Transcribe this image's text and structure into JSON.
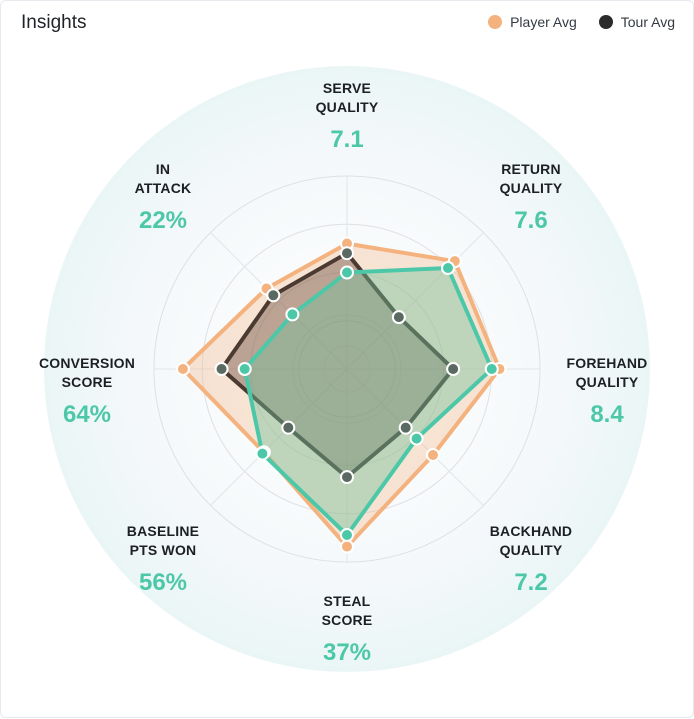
{
  "header": {
    "title": "Insights"
  },
  "colors": {
    "player": "#f4b27e",
    "tour": "#2b2b2b",
    "current": "#4cc8a8",
    "bg_circle": "#eaf6f5"
  },
  "chart_data": {
    "type": "radar",
    "legend_position": "top-right",
    "axes": [
      {
        "name": [
          "SERVE",
          "QUALITY"
        ],
        "value_label": "7.1"
      },
      {
        "name": [
          "RETURN",
          "QUALITY"
        ],
        "value_label": "7.6"
      },
      {
        "name": [
          "FOREHAND",
          "QUALITY"
        ],
        "value_label": "8.4"
      },
      {
        "name": [
          "BACKHAND",
          "QUALITY"
        ],
        "value_label": "7.2"
      },
      {
        "name": [
          "STEAL",
          "SCORE"
        ],
        "value_label": "37%"
      },
      {
        "name": [
          "BASELINE",
          "PTS WON"
        ],
        "value_label": "56%"
      },
      {
        "name": [
          "CONVERSION",
          "SCORE"
        ],
        "value_label": "64%"
      },
      {
        "name": [
          "IN",
          "ATTACK"
        ],
        "value_label": "22%"
      }
    ],
    "rmax": 1.0,
    "rings": [
      0.25,
      0.5,
      0.75,
      1.0
    ],
    "series": [
      {
        "name": "Player Avg",
        "color_key": "player",
        "values": [
          0.65,
          0.79,
          0.79,
          0.63,
          0.92,
          0.61,
          0.85,
          0.59
        ]
      },
      {
        "name": "Tour Avg",
        "color_key": "tour",
        "values": [
          0.6,
          0.38,
          0.55,
          0.43,
          0.56,
          0.43,
          0.65,
          0.54
        ]
      },
      {
        "name": "",
        "color_key": "current",
        "values": [
          0.5,
          0.74,
          0.75,
          0.51,
          0.86,
          0.62,
          0.53,
          0.4
        ]
      }
    ]
  }
}
